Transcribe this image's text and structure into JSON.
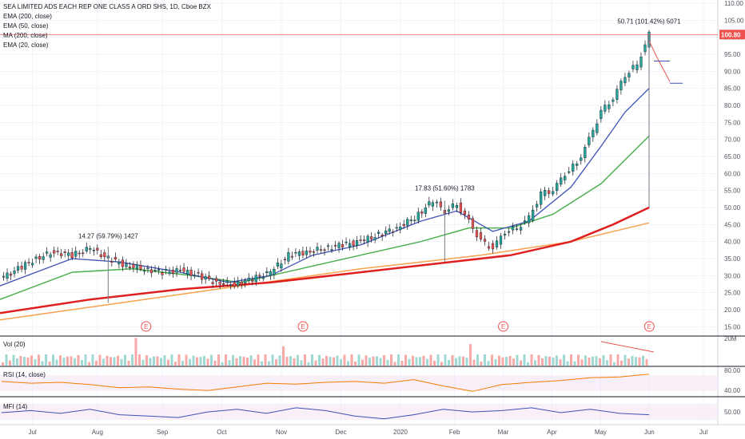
{
  "chart_data": {
    "type": "candlestick",
    "title": "SEA LIMITED ADS EACH REP ONE CLASS A ORD SHS, 1D, Cboe BZX",
    "indicators": [
      "EMA (200, close)",
      "EMA (50, close)",
      "MA (200, close)",
      "EMA (20, close)"
    ],
    "price_axis": {
      "ylim": [
        12.5,
        110
      ],
      "ticks": [
        "110.00",
        "105.00",
        "100.00",
        "95.00",
        "90.00",
        "85.00",
        "80.00",
        "75.00",
        "70.00",
        "65.00",
        "60.00",
        "55.00",
        "50.00",
        "45.00",
        "40.00",
        "35.00",
        "30.00",
        "25.00",
        "20.00",
        "15.00"
      ],
      "last_price_label": "100.80",
      "last_price": 100.8
    },
    "time_axis": {
      "labels": [
        "Jul",
        "Aug",
        "Sep",
        "Oct",
        "Nov",
        "Dec",
        "2020",
        "Feb",
        "Mar",
        "Apr",
        "May",
        "Jun",
        "Jul"
      ]
    },
    "annotations": [
      {
        "text": "14.27 (59.79%) 1427",
        "x_month": "Aug"
      },
      {
        "text": "17.83 (51.60%) 1783",
        "x_month": "Feb"
      },
      {
        "text": "50.71 (101.42%) 5071",
        "x_month": "Jun"
      }
    ],
    "earnings_markers": [
      "E",
      "E",
      "E",
      "E"
    ],
    "price_path": [
      {
        "t": 0,
        "close": 29
      },
      {
        "t": 3,
        "close": 32
      },
      {
        "t": 6,
        "close": 35
      },
      {
        "t": 9,
        "close": 37
      },
      {
        "t": 12,
        "close": 36
      },
      {
        "t": 15,
        "close": 38
      },
      {
        "t": 18,
        "close": 35
      },
      {
        "t": 21,
        "close": 33
      },
      {
        "t": 24,
        "close": 32
      },
      {
        "t": 27,
        "close": 31
      },
      {
        "t": 30,
        "close": 31.5
      },
      {
        "t": 33,
        "close": 30
      },
      {
        "t": 36,
        "close": 28
      },
      {
        "t": 39,
        "close": 27.5
      },
      {
        "t": 42,
        "close": 29
      },
      {
        "t": 45,
        "close": 31
      },
      {
        "t": 48,
        "close": 36
      },
      {
        "t": 51,
        "close": 37
      },
      {
        "t": 54,
        "close": 38
      },
      {
        "t": 57,
        "close": 39
      },
      {
        "t": 60,
        "close": 40
      },
      {
        "t": 63,
        "close": 42
      },
      {
        "t": 66,
        "close": 44
      },
      {
        "t": 69,
        "close": 47
      },
      {
        "t": 72,
        "close": 52
      },
      {
        "t": 74,
        "close": 49
      },
      {
        "t": 76,
        "close": 51
      },
      {
        "t": 78,
        "close": 46
      },
      {
        "t": 80,
        "close": 40
      },
      {
        "t": 82,
        "close": 38
      },
      {
        "t": 84,
        "close": 43
      },
      {
        "t": 86,
        "close": 44
      },
      {
        "t": 88,
        "close": 47
      },
      {
        "t": 90,
        "close": 54
      },
      {
        "t": 92,
        "close": 55
      },
      {
        "t": 94,
        "close": 60
      },
      {
        "t": 96,
        "close": 63
      },
      {
        "t": 98,
        "close": 70
      },
      {
        "t": 100,
        "close": 78
      },
      {
        "t": 102,
        "close": 82
      },
      {
        "t": 104,
        "close": 89
      },
      {
        "t": 106,
        "close": 92
      },
      {
        "t": 108,
        "close": 100.8
      }
    ],
    "ema20_path": [
      {
        "t": 0,
        "v": 27
      },
      {
        "t": 12,
        "v": 35
      },
      {
        "t": 20,
        "v": 34
      },
      {
        "t": 30,
        "v": 31
      },
      {
        "t": 38,
        "v": 28
      },
      {
        "t": 45,
        "v": 30
      },
      {
        "t": 52,
        "v": 36
      },
      {
        "t": 60,
        "v": 39
      },
      {
        "t": 70,
        "v": 46
      },
      {
        "t": 76,
        "v": 49
      },
      {
        "t": 82,
        "v": 43
      },
      {
        "t": 88,
        "v": 46
      },
      {
        "t": 95,
        "v": 56
      },
      {
        "t": 100,
        "v": 68
      },
      {
        "t": 104,
        "v": 78
      },
      {
        "t": 108,
        "v": 85
      }
    ],
    "ema50_path": [
      {
        "t": 0,
        "v": 23
      },
      {
        "t": 12,
        "v": 31
      },
      {
        "t": 22,
        "v": 32
      },
      {
        "t": 32,
        "v": 30
      },
      {
        "t": 40,
        "v": 28
      },
      {
        "t": 50,
        "v": 32
      },
      {
        "t": 60,
        "v": 36
      },
      {
        "t": 70,
        "v": 40
      },
      {
        "t": 78,
        "v": 44
      },
      {
        "t": 85,
        "v": 44
      },
      {
        "t": 92,
        "v": 48
      },
      {
        "t": 100,
        "v": 57
      },
      {
        "t": 108,
        "v": 71
      }
    ],
    "ma200_path": [
      {
        "t": 0,
        "v": 19
      },
      {
        "t": 15,
        "v": 23
      },
      {
        "t": 30,
        "v": 26
      },
      {
        "t": 45,
        "v": 28
      },
      {
        "t": 60,
        "v": 31
      },
      {
        "t": 75,
        "v": 34
      },
      {
        "t": 85,
        "v": 36
      },
      {
        "t": 95,
        "v": 40
      },
      {
        "t": 102,
        "v": 45
      },
      {
        "t": 108,
        "v": 50
      }
    ],
    "ema200_path": [
      {
        "t": 0,
        "v": 17
      },
      {
        "t": 20,
        "v": 22
      },
      {
        "t": 40,
        "v": 27
      },
      {
        "t": 60,
        "v": 32
      },
      {
        "t": 80,
        "v": 36
      },
      {
        "t": 95,
        "v": 40
      },
      {
        "t": 108,
        "v": 45.5
      }
    ],
    "volume_panel": {
      "label": "Vol (20)",
      "tick": "20M"
    },
    "rsi_panel": {
      "label": "RSI (14, close)",
      "ticks": [
        "80.00",
        "40.00"
      ],
      "path": [
        62,
        58,
        60,
        55,
        48,
        50,
        45,
        42,
        50,
        58,
        56,
        60,
        62,
        58,
        66,
        52,
        40,
        55,
        60,
        64,
        70,
        72,
        78
      ]
    },
    "mfi_panel": {
      "label": "MFI (14)",
      "ticks": [
        "50.00"
      ],
      "path": [
        55,
        58,
        54,
        60,
        52,
        50,
        48,
        56,
        60,
        54,
        62,
        58,
        50,
        46,
        52,
        60,
        56,
        58,
        62,
        55,
        60,
        54,
        52
      ]
    }
  }
}
